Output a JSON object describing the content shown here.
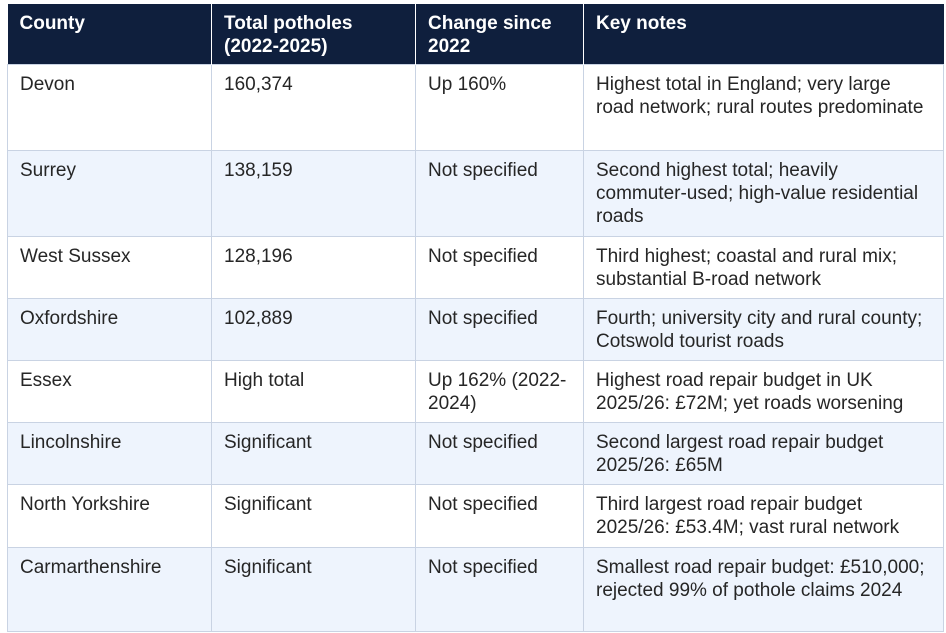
{
  "table": {
    "headers": [
      "County",
      "Total potholes (2022-2025)",
      "Change since 2022",
      "Key notes"
    ],
    "rows": [
      [
        "Devon",
        "160,374",
        "Up 160%",
        "Highest total in England; very large road network; rural routes predominate"
      ],
      [
        "Surrey",
        "138,159",
        "Not specified",
        "Second highest total; heavily commuter-used; high-value residential roads"
      ],
      [
        "West Sussex",
        "128,196",
        "Not specified",
        "Third highest; coastal and rural mix; substantial B-road network"
      ],
      [
        "Oxfordshire",
        "102,889",
        "Not specified",
        "Fourth; university city and rural county; Cotswold tourist roads"
      ],
      [
        "Essex",
        "High total",
        "Up 162% (2022-2024)",
        "Highest road repair budget in UK 2025/26: £72M; yet roads worsening"
      ],
      [
        "Lincolnshire",
        "Significant",
        "Not specified",
        "Second largest road repair budget 2025/26: £65M"
      ],
      [
        "North Yorkshire",
        "Significant",
        "Not specified",
        "Third largest road repair budget 2025/26: £53.4M; vast rural network"
      ],
      [
        "Carmarthenshire",
        "Significant",
        "Not specified",
        "Smallest road repair budget: £510,000; rejected 99% of pothole claims 2024"
      ]
    ]
  },
  "colors": {
    "header_background": "#0f1f3d",
    "header_text": "#ffffff",
    "alt_row_background": "#eef4fd",
    "grid_line": "#c9d3e3"
  }
}
